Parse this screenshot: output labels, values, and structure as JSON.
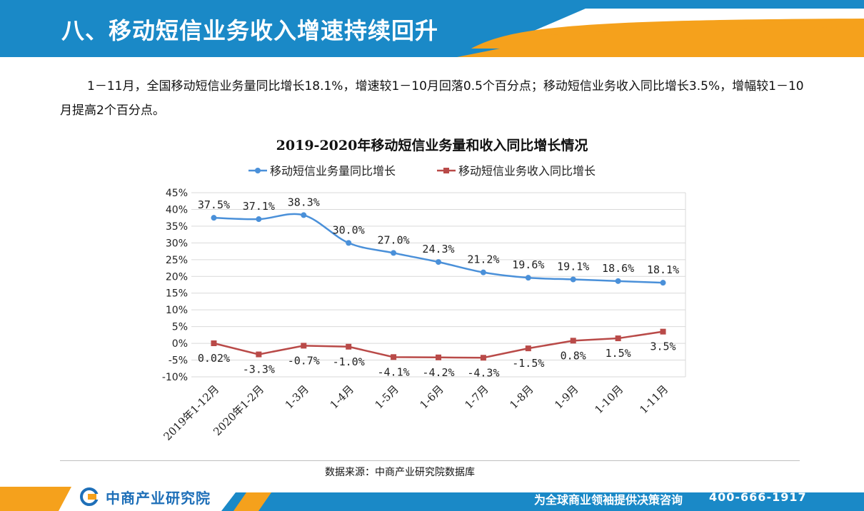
{
  "header": {
    "title": "八、移动短信业务收入增速持续回升",
    "colors": {
      "band": "#1a89c7",
      "accent": "#f5a11c"
    }
  },
  "body": {
    "text": "1－11月，全国移动短信业务量同比增长18.1%，增速较1－10月回落0.5个百分点；移动短信业务收入同比增长3.5%，增幅较1－10月提高2个百分点。"
  },
  "chart_data": {
    "type": "line",
    "title": "2019-2020年移动短信业务量和收入同比增长情况",
    "xlabel": "",
    "ylabel": "",
    "categories": [
      "2019年1-12月",
      "2020年1-2月",
      "1-3月",
      "1-4月",
      "1-5月",
      "1-6月",
      "1-7月",
      "1-8月",
      "1-9月",
      "1-10月",
      "1-11月"
    ],
    "ylim": [
      -10,
      45
    ],
    "yticks": [
      -10,
      -5,
      0,
      5,
      10,
      15,
      20,
      25,
      30,
      35,
      40,
      45
    ],
    "ytick_labels": [
      "-10%",
      "-5%",
      "0%",
      "5%",
      "10%",
      "15%",
      "20%",
      "25%",
      "30%",
      "35%",
      "40%",
      "45%"
    ],
    "grid": true,
    "legend_position": "top",
    "series": [
      {
        "name": "移动短信业务量同比增长",
        "color": "#4a90d9",
        "values": [
          37.5,
          37.1,
          38.3,
          30.0,
          27.0,
          24.3,
          21.2,
          19.6,
          19.1,
          18.6,
          18.1
        ],
        "labels": [
          "37.5%",
          "37.1%",
          "38.3%",
          "30.0%",
          "27.0%",
          "24.3%",
          "21.2%",
          "19.6%",
          "19.1%",
          "18.6%",
          "18.1%"
        ]
      },
      {
        "name": "移动短信业务收入同比增长",
        "color": "#b94a48",
        "values": [
          0.02,
          -3.3,
          -0.7,
          -1.0,
          -4.1,
          -4.2,
          -4.3,
          -1.5,
          0.8,
          1.5,
          3.5
        ],
        "labels": [
          "0.02%",
          "-3.3%",
          "-0.7%",
          "-1.0%",
          "-4.1%",
          "-4.2%",
          "-4.3%",
          "-1.5%",
          "0.8%",
          "1.5%",
          "3.5%"
        ]
      }
    ]
  },
  "source": {
    "text": "数据来源：中商产业研究院数据库"
  },
  "footer": {
    "logo_text": "中商产业研究院",
    "slogan": "为全球商业领袖提供决策咨询",
    "phone": "400-666-1917",
    "colors": {
      "band": "#1a89c7",
      "accent": "#f5a11c",
      "logo": "#1e6fb8"
    },
    "logo_icon": "company-logo-icon"
  }
}
